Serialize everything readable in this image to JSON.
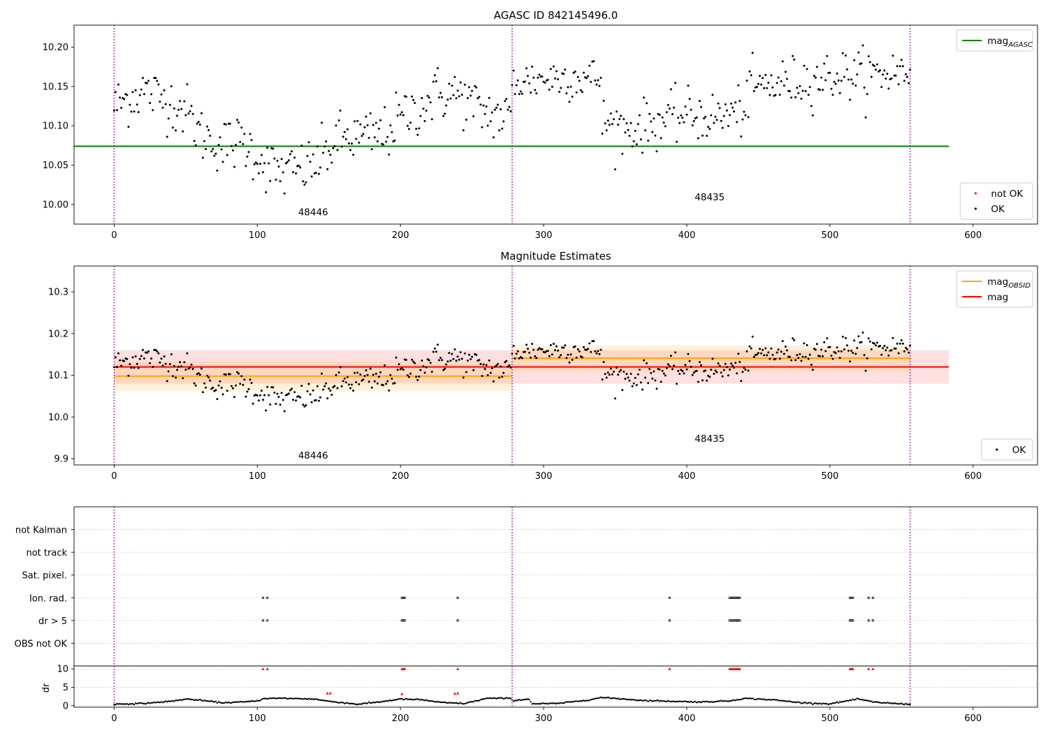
{
  "chart_data": [
    {
      "type": "scatter",
      "title": "AGASC ID 842145496.0",
      "xlabel": "",
      "ylabel": "",
      "xlim": [
        -28,
        645
      ],
      "ylim": [
        9.975,
        10.228
      ],
      "xticks": [
        0,
        100,
        200,
        300,
        400,
        500,
        600
      ],
      "yticks": [
        10.0,
        10.05,
        10.1,
        10.15,
        10.2
      ],
      "ytick_format": 2,
      "grid": false,
      "obs_boundaries": [
        0,
        278,
        556
      ],
      "obs_labels": [
        {
          "text": "48446",
          "x": 139,
          "y": 9.986
        },
        {
          "text": "48435",
          "x": 416,
          "y": 10.005
        }
      ],
      "lines": [
        {
          "name": "mag_AGASC",
          "label_main": "mag",
          "label_sub": "AGASC",
          "color": "#008000",
          "y": 10.074,
          "x": [
            -28,
            583
          ]
        }
      ],
      "bands": [],
      "legend": [
        {
          "location": "top-right",
          "entries": [
            {
              "kind": "line",
              "color": "#008000",
              "label_main": "mag",
              "label_sub": "AGASC"
            }
          ]
        },
        {
          "location": "bottom-right",
          "entries": [
            {
              "kind": "dot",
              "color": "#ff0000",
              "label": "not OK"
            },
            {
              "kind": "dot",
              "color": "#000000",
              "label": "OK"
            }
          ]
        }
      ],
      "series": [
        {
          "name": "OK",
          "color": "#000000",
          "segments": [
            {
              "x_start": 0,
              "x_end": 277,
              "anchors": [
                [
                  0,
                  10.125
                ],
                [
                  20,
                  10.145
                ],
                [
                  40,
                  10.13
                ],
                [
                  50,
                  10.12
                ],
                [
                  60,
                  10.09
                ],
                [
                  75,
                  10.075
                ],
                [
                  90,
                  10.08
                ],
                [
                  100,
                  10.062
                ],
                [
                  110,
                  10.045
                ],
                [
                  120,
                  10.04
                ],
                [
                  130,
                  10.045
                ],
                [
                  140,
                  10.05
                ],
                [
                  150,
                  10.07
                ],
                [
                  160,
                  10.085
                ],
                [
                  175,
                  10.085
                ],
                [
                  190,
                  10.09
                ],
                [
                  200,
                  10.11
                ],
                [
                  215,
                  10.125
                ],
                [
                  225,
                  10.14
                ],
                [
                  240,
                  10.14
                ],
                [
                  255,
                  10.12
                ],
                [
                  265,
                  10.115
                ],
                [
                  277,
                  10.11
                ]
              ],
              "spread": 0.022
            },
            {
              "x_start": 278,
              "x_end": 340,
              "anchors": [
                [
                  278,
                  10.155
                ],
                [
                  300,
                  10.16
                ],
                [
                  320,
                  10.162
                ],
                [
                  340,
                  10.16
                ]
              ],
              "spread": 0.018
            },
            {
              "x_start": 341,
              "x_end": 556,
              "anchors": [
                [
                  341,
                  10.105
                ],
                [
                  360,
                  10.095
                ],
                [
                  380,
                  10.105
                ],
                [
                  400,
                  10.115
                ],
                [
                  420,
                  10.11
                ],
                [
                  440,
                  10.12
                ],
                [
                  445,
                  10.148
                ],
                [
                  470,
                  10.155
                ],
                [
                  490,
                  10.16
                ],
                [
                  510,
                  10.165
                ],
                [
                  530,
                  10.165
                ],
                [
                  556,
                  10.17
                ]
              ],
              "spread": 0.02
            }
          ]
        }
      ]
    },
    {
      "type": "scatter",
      "title": "Magnitude Estimates",
      "xlabel": "",
      "ylabel": "",
      "xlim": [
        -28,
        645
      ],
      "ylim": [
        9.885,
        10.362
      ],
      "xticks": [
        0,
        100,
        200,
        300,
        400,
        500,
        600
      ],
      "yticks": [
        9.9,
        10.0,
        10.1,
        10.2,
        10.3
      ],
      "ytick_format": 1,
      "grid": false,
      "obs_boundaries": [
        0,
        278,
        556
      ],
      "obs_labels": [
        {
          "text": "48446",
          "x": 139,
          "y": 9.9
        },
        {
          "text": "48435",
          "x": 416,
          "y": 9.94
        }
      ],
      "lines": [
        {
          "name": "mag_OBSID",
          "label_main": "mag",
          "label_sub": "OBSID",
          "color": "#ffa500",
          "y": 10.098,
          "x": [
            0,
            278
          ]
        },
        {
          "name": "mag_OBSID",
          "label_main": "mag",
          "label_sub": "OBSID",
          "color": "#ffa500",
          "y": 10.141,
          "x": [
            278,
            556
          ]
        },
        {
          "name": "mag",
          "label_main": "mag",
          "label_sub": "",
          "color": "#ff0000",
          "y": 10.12,
          "x": [
            0,
            583
          ]
        }
      ],
      "bands": [
        {
          "color": "#ff0000",
          "opacity": 0.12,
          "y": [
            10.08,
            10.16
          ],
          "x": [
            0,
            583
          ]
        },
        {
          "color": "#ffa500",
          "opacity": 0.14,
          "y": [
            10.063,
            10.133
          ],
          "x": [
            0,
            278
          ]
        },
        {
          "color": "#ffa500",
          "opacity": 0.14,
          "y": [
            10.11,
            10.172
          ],
          "x": [
            278,
            556
          ]
        }
      ],
      "legend": [
        {
          "location": "top-right",
          "entries": [
            {
              "kind": "line",
              "color": "#ffa500",
              "label_main": "mag",
              "label_sub": "OBSID"
            },
            {
              "kind": "line",
              "color": "#ff0000",
              "label_main": "mag",
              "label_sub": ""
            }
          ]
        },
        {
          "location": "bottom-right",
          "entries": [
            {
              "kind": "dot",
              "color": "#000000",
              "label": "OK"
            }
          ]
        }
      ],
      "series": [
        {
          "name": "OK",
          "color": "#000000",
          "segments": "same-as-panel-1"
        }
      ]
    },
    {
      "type": "scatter",
      "title": "",
      "xlabel": "",
      "ylabel": "",
      "xlim": [
        -28,
        645
      ],
      "categories": [
        "not Kalman",
        "not track",
        "Sat. pixel.",
        "Ion. rad.",
        "dr > 5",
        "OBS not OK"
      ],
      "grid": true,
      "obs_boundaries": [
        0,
        278,
        556
      ],
      "flags": {
        "Ion. rad.": [
          104,
          107,
          201,
          202,
          203,
          240,
          388,
          430,
          431,
          432,
          433,
          434,
          435,
          436,
          437,
          514,
          515,
          516,
          527,
          530
        ],
        "dr > 5": [
          104,
          107,
          201,
          202,
          203,
          240,
          388,
          430,
          431,
          432,
          433,
          434,
          435,
          436,
          437,
          514,
          515,
          516,
          527,
          530
        ]
      }
    },
    {
      "type": "scatter",
      "title": "",
      "xlabel": "",
      "ylabel": "dr",
      "xlim": [
        -28,
        645
      ],
      "ylim": [
        -0.4,
        10.8
      ],
      "yticks": [
        0,
        5,
        10
      ],
      "grid": true,
      "obs_boundaries": [
        0,
        278,
        556
      ],
      "dr_anchors": [
        [
          0,
          0.4
        ],
        [
          20,
          0.6
        ],
        [
          40,
          1.2
        ],
        [
          50,
          1.8
        ],
        [
          60,
          1.5
        ],
        [
          75,
          0.8
        ],
        [
          90,
          1.0
        ],
        [
          100,
          1.3
        ],
        [
          105,
          2.0
        ],
        [
          120,
          2.0
        ],
        [
          140,
          1.8
        ],
        [
          150,
          1.2
        ],
        [
          160,
          0.8
        ],
        [
          170,
          0.4
        ],
        [
          185,
          1.0
        ],
        [
          200,
          1.8
        ],
        [
          215,
          1.6
        ],
        [
          230,
          0.8
        ],
        [
          245,
          0.6
        ],
        [
          255,
          1.5
        ],
        [
          260,
          2.0
        ],
        [
          277,
          2.0
        ],
        [
          278,
          1.4
        ],
        [
          290,
          1.8
        ],
        [
          292,
          0.5
        ],
        [
          310,
          0.6
        ],
        [
          330,
          1.5
        ],
        [
          340,
          2.2
        ],
        [
          350,
          2.0
        ],
        [
          370,
          1.4
        ],
        [
          390,
          1.2
        ],
        [
          410,
          1.0
        ],
        [
          430,
          1.3
        ],
        [
          440,
          2.0
        ],
        [
          460,
          1.6
        ],
        [
          480,
          0.8
        ],
        [
          500,
          0.5
        ],
        [
          515,
          1.5
        ],
        [
          520,
          1.8
        ],
        [
          530,
          1.0
        ],
        [
          545,
          0.6
        ],
        [
          556,
          0.4
        ]
      ],
      "dr_red": [
        [
          104,
          10
        ],
        [
          107,
          10
        ],
        [
          201,
          10
        ],
        [
          202,
          10
        ],
        [
          203,
          10
        ],
        [
          240,
          10
        ],
        [
          388,
          10
        ],
        [
          430,
          10
        ],
        [
          431,
          10
        ],
        [
          432,
          10
        ],
        [
          433,
          10
        ],
        [
          434,
          10
        ],
        [
          435,
          10
        ],
        [
          436,
          10
        ],
        [
          437,
          10
        ],
        [
          514,
          10
        ],
        [
          515,
          10
        ],
        [
          516,
          10
        ],
        [
          527,
          10
        ],
        [
          530,
          10
        ],
        [
          149,
          3.4
        ],
        [
          151,
          3.4
        ],
        [
          201,
          3.2
        ],
        [
          238,
          3.3
        ],
        [
          240,
          3.4
        ]
      ]
    }
  ]
}
